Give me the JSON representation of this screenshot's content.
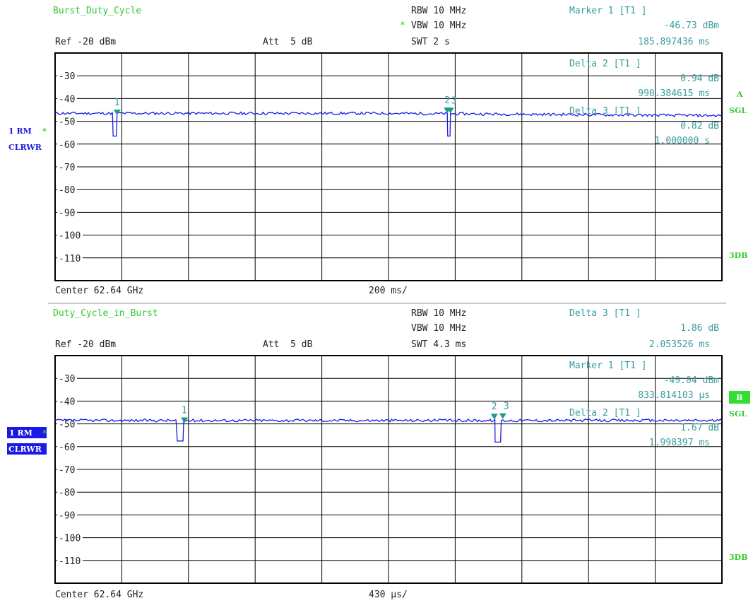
{
  "chart_data": [
    {
      "type": "line",
      "title": "Burst_Duty_Cycle",
      "ref_level": "Ref -20 dBm",
      "attenuation": "Att  5 dB",
      "rbw": "RBW 10 MHz",
      "vbw": "VBW 10 MHz",
      "vbw_star": "*",
      "swt": "SWT 2 s",
      "center": "Center 62.64 GHz",
      "span_per_div": "200 ms/",
      "x_div": 0.2,
      "x_range": [
        0,
        2
      ],
      "ylim": [
        -120,
        -20
      ],
      "y_ticks": [
        "-30",
        "-40",
        "-50",
        "-60",
        "-70",
        "-80",
        "-90",
        "-100",
        "-110"
      ],
      "trace_label": "1 RM",
      "trace_star": "*",
      "trace_mode": "CLRWR",
      "side_letter": "A",
      "side_mode": "SGL",
      "side_bottom": "3DB",
      "trace_color": "#1a1ae6",
      "marker_readouts": [
        {
          "head": "Marker 1 [T1 ]",
          "value": "-46.73 dBm",
          "pos": "185.897436 ms"
        },
        {
          "head": "Delta 2 [T1 ]",
          "value": "0.94 dB",
          "pos": "990.384615 ms"
        },
        {
          "head": "Delta 3 [T1 ]",
          "value": "0.82 dB",
          "pos": "1.000000 s"
        }
      ],
      "markers": [
        {
          "label": "1",
          "x": 0.1859,
          "y": -46.73
        },
        {
          "label": "2",
          "x": 1.1763,
          "y": -45.8
        },
        {
          "label": "3",
          "x": 1.1859,
          "y": -45.9
        }
      ],
      "trace": {
        "baseline": -46.5,
        "end_level": -47.5,
        "dips": [
          {
            "x1": 0.172,
            "x2": 0.186,
            "y": -56.5
          },
          {
            "x1": 1.176,
            "x2": 1.186,
            "y": -56.5
          }
        ]
      }
    },
    {
      "type": "line",
      "title": "Duty_Cycle_in_Burst",
      "ref_level": "Ref -20 dBm",
      "attenuation": "Att  5 dB",
      "rbw": "RBW 10 MHz",
      "vbw": "VBW 10 MHz",
      "vbw_star": "",
      "swt": "SWT 4.3 ms",
      "center": "Center 62.64 GHz",
      "span_per_div": "430 µs/",
      "x_div": 430,
      "x_range": [
        0,
        4300
      ],
      "ylim": [
        -120,
        -20
      ],
      "y_ticks": [
        "-30",
        "-40",
        "-50",
        "-60",
        "-70",
        "-80",
        "-90",
        "-100",
        "-110"
      ],
      "trace_label": "1 RM",
      "trace_star": "*",
      "trace_mode": "CLRWR",
      "side_letter": "B",
      "side_mode": "SGL",
      "side_bottom": "3DB",
      "trace_color": "#1a1ae6",
      "marker_readouts": [
        {
          "head": "Delta 3 [T1 ]",
          "value": "1.86 dB",
          "pos": "2.053526 ms"
        },
        {
          "head": "Marker 1 [T1 ]",
          "value": "-49.04 dBm",
          "pos": "833.814103 µs"
        },
        {
          "head": "Delta 2 [T1 ]",
          "value": "1.67 dB",
          "pos": "1.998397 ms"
        }
      ],
      "markers": [
        {
          "label": "1",
          "x": 833.8,
          "y": -49.04
        },
        {
          "label": "2",
          "x": 2832.2,
          "y": -47.4
        },
        {
          "label": "3",
          "x": 2887.3,
          "y": -47.2
        }
      ],
      "trace": {
        "baseline": -48.5,
        "end_level": -48.5,
        "dips": [
          {
            "x1": 780,
            "x2": 833,
            "y": -57.5
          },
          {
            "x1": 2830,
            "x2": 2880,
            "y": -58
          }
        ]
      }
    }
  ]
}
